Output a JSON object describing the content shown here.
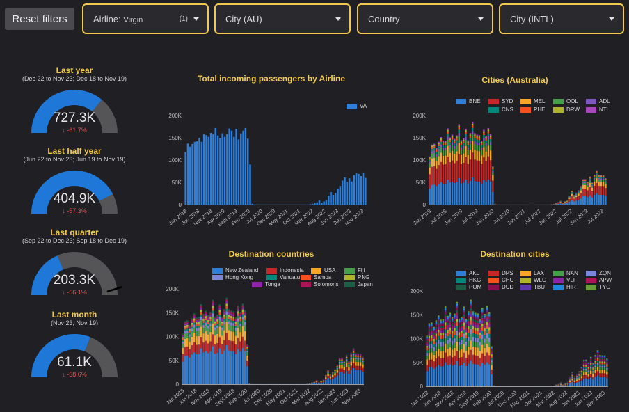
{
  "filters": {
    "reset_label": "Reset filters",
    "airline": {
      "label": "Airline:",
      "value": "Virgin",
      "count": "(1)"
    },
    "city_au": {
      "label": "City (AU)"
    },
    "country": {
      "label": "Country"
    },
    "city_intl": {
      "label": "City (INTL)"
    }
  },
  "gauges": [
    {
      "title": "Last year",
      "subtitle": "(Dec 22 to Nov 23; Dec 18 to Nov 19)",
      "value": "727.3K",
      "delta": "-61.7%",
      "fill": 0.72
    },
    {
      "title": "Last half year",
      "subtitle": "(Jun 22 to Nov 23; Jun 19 to Nov 19)",
      "value": "404.9K",
      "delta": "-57.3%",
      "fill": 0.85
    },
    {
      "title": "Last quarter",
      "subtitle": "(Sep 22 to Dec 23; Sep 18 to Dec 19)",
      "value": "203.3K",
      "delta": "-56.1%",
      "fill": 0.37
    },
    {
      "title": "Last month",
      "subtitle": "(Nov 23; Nov 19)",
      "value": "61.1K",
      "delta": "-58.6%",
      "fill": 0.62
    }
  ],
  "colors": {
    "accent": "#f2c94c",
    "bar_blue": "#2f7ed8",
    "gauge_blue": "#1f78d8",
    "gauge_gray": "#555558",
    "down_red": "#e05555"
  },
  "chart_data": [
    {
      "type": "bar",
      "title": "Total incoming passengers by Airline",
      "ylim": [
        0,
        200000
      ],
      "yticks": [
        "0",
        "50K",
        "100K",
        "150K",
        "200K"
      ],
      "xticks": [
        "Jan 2018",
        "Jun 2018",
        "Nov 2018",
        "Apr 2019",
        "Sept 2019",
        "Feb 2020",
        "Jul 2020",
        "Dec 2020",
        "May 2021",
        "Oct 2021",
        "Mar 2022",
        "Aug 2022",
        "Jan 2023",
        "Jun 2023",
        "Nov 2023"
      ],
      "series": [
        {
          "name": "VA",
          "color": "#2f7ed8",
          "values": [
            118000,
            137000,
            130000,
            136000,
            141000,
            142000,
            150000,
            141000,
            158000,
            156000,
            152000,
            161000,
            158000,
            172000,
            155000,
            149000,
            160000,
            152000,
            158000,
            171000,
            166000,
            152000,
            170000,
            146000,
            160000,
            166000,
            172000,
            148000,
            90000,
            2000,
            500,
            500,
            400,
            300,
            300,
            300,
            300,
            300,
            300,
            300,
            300,
            300,
            300,
            300,
            300,
            200,
            300,
            300,
            300,
            300,
            300,
            300,
            300,
            300,
            1000,
            2000,
            4000,
            5000,
            9000,
            4000,
            7000,
            10000,
            20000,
            28000,
            22000,
            26000,
            35000,
            42000,
            54000,
            61000,
            51000,
            59000,
            52000,
            66000,
            71000,
            69000,
            64000,
            72000,
            60000
          ]
        }
      ]
    },
    {
      "type": "bar",
      "title": "Cities (Australia)",
      "ylim": [
        0,
        200000
      ],
      "yticks": [
        "0",
        "50K",
        "100K",
        "150K",
        "200K"
      ],
      "xticks": [
        "Jan 2018",
        "Jul 2018",
        "Jan 2019",
        "Jul 2019",
        "Jan 2020",
        "Jul 2020",
        "Jan 2021",
        "Jul 2021",
        "Jan 2022",
        "Jul 2022",
        "Jan 2023",
        "Jul 2023"
      ],
      "series": [
        {
          "name": "BNE",
          "color": "#2f7ed8"
        },
        {
          "name": "SYD",
          "color": "#c62828"
        },
        {
          "name": "MEL",
          "color": "#f9a825"
        },
        {
          "name": "OOL",
          "color": "#43a047"
        },
        {
          "name": "ADL",
          "color": "#7e57c2"
        },
        {
          "name": "CNS",
          "color": "#00897b"
        },
        {
          "name": "PHE",
          "color": "#f4511e"
        },
        {
          "name": "DRW",
          "color": "#afb42b"
        },
        {
          "name": "NTL",
          "color": "#ab47bc"
        }
      ]
    },
    {
      "type": "bar",
      "title": "Destination countries",
      "ylim": [
        0,
        200000
      ],
      "yticks": [
        "0",
        "50K",
        "100K",
        "150K",
        "200K"
      ],
      "xticks": [
        "Jan 2018",
        "Jun 2018",
        "Nov 2018",
        "Apr 2019",
        "Sept 2019",
        "Feb 2020",
        "Jul 2020",
        "Dec 2020",
        "May 2021",
        "Oct 2021",
        "Mar 2022",
        "Aug 2022",
        "Jan 2023",
        "Jun 2023",
        "Nov 2023"
      ],
      "series": [
        {
          "name": "New Zealand",
          "color": "#2f7ed8"
        },
        {
          "name": "Indonesia",
          "color": "#c62828"
        },
        {
          "name": "USA",
          "color": "#f9a825"
        },
        {
          "name": "Fiji",
          "color": "#43a047"
        },
        {
          "name": "Hong Kong",
          "color": "#7e85d8"
        },
        {
          "name": "Vanuatu",
          "color": "#00897b"
        },
        {
          "name": "Samoa",
          "color": "#f4511e"
        },
        {
          "name": "PNG",
          "color": "#afb42b"
        },
        {
          "name": "Tonga",
          "color": "#8e24aa"
        },
        {
          "name": "Solomons",
          "color": "#ad1457"
        },
        {
          "name": "Japan",
          "color": "#1b5e45"
        }
      ]
    },
    {
      "type": "bar",
      "title": "Destination cities",
      "ylim": [
        0,
        200000
      ],
      "yticks": [
        "0",
        "50K",
        "100K",
        "150K",
        "200K"
      ],
      "xticks": [
        "Jan 2018",
        "Jun 2018",
        "Nov 2018",
        "Apr 2019",
        "Sept 2019",
        "Feb 2020",
        "Jul 2020",
        "Dec 2020",
        "May 2021",
        "Oct 2021",
        "Mar 2022",
        "Aug 2022",
        "Jan 2023",
        "Jun 2023",
        "Nov 2023"
      ],
      "series": [
        {
          "name": "AKL",
          "color": "#2f7ed8"
        },
        {
          "name": "DPS",
          "color": "#c62828"
        },
        {
          "name": "LAX",
          "color": "#f9a825"
        },
        {
          "name": "NAN",
          "color": "#43a047"
        },
        {
          "name": "ZQN",
          "color": "#7e85d8"
        },
        {
          "name": "HKG",
          "color": "#00897b"
        },
        {
          "name": "CHC",
          "color": "#f4511e"
        },
        {
          "name": "WLG",
          "color": "#afb42b"
        },
        {
          "name": "VLI",
          "color": "#8e24aa"
        },
        {
          "name": "APW",
          "color": "#ad1457"
        },
        {
          "name": "POM",
          "color": "#1b5e45"
        },
        {
          "name": "DUD",
          "color": "#880e4f"
        },
        {
          "name": "TBU",
          "color": "#5e35b1"
        },
        {
          "name": "HIR",
          "color": "#1e88e5"
        },
        {
          "name": "TYO",
          "color": "#689f38"
        }
      ]
    }
  ]
}
